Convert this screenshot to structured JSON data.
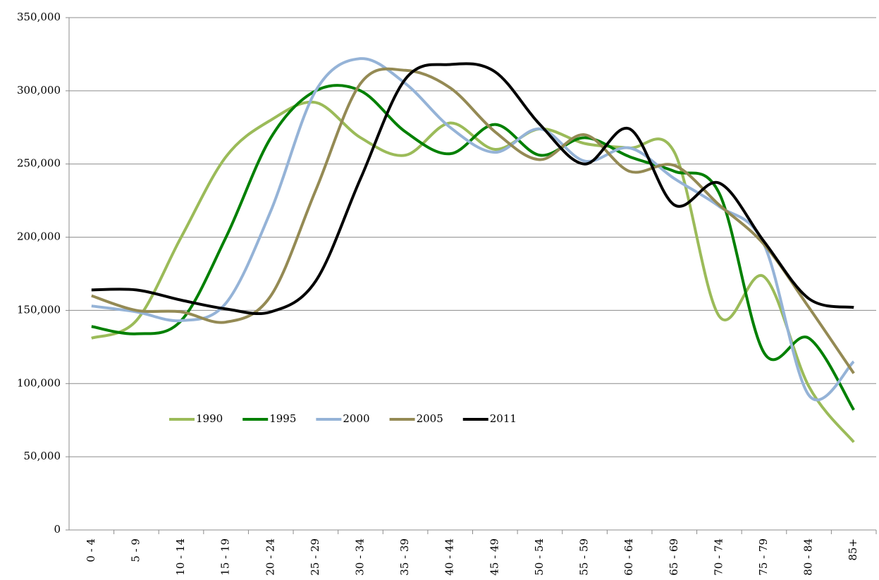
{
  "chart_data": {
    "type": "line",
    "smooth": true,
    "categories": [
      "0 - 4",
      "5 - 9",
      "10 - 14",
      "15 - 19",
      "20 - 24",
      "25 - 29",
      "30 - 34",
      "35 - 39",
      "40 - 44",
      "45 - 49",
      "50 - 54",
      "55 - 59",
      "60 - 64",
      "65 - 69",
      "70 - 74",
      "75 - 79",
      "80 - 84",
      "85+"
    ],
    "series": [
      {
        "name": "1990",
        "color": "#9bbb59",
        "values": [
          131000,
          143000,
          200000,
          255000,
          280000,
          292000,
          268000,
          256000,
          278000,
          260000,
          274000,
          264000,
          261000,
          258000,
          146000,
          173000,
          98000,
          60000
        ]
      },
      {
        "name": "1995",
        "color": "#008000",
        "values": [
          139000,
          134000,
          143000,
          200000,
          268000,
          300000,
          300000,
          272000,
          257000,
          277000,
          256000,
          268000,
          255000,
          245000,
          230000,
          121000,
          131000,
          82000
        ]
      },
      {
        "name": "2000",
        "color": "#95b3d7",
        "values": [
          153000,
          149000,
          143000,
          155000,
          218000,
          300000,
          322000,
          305000,
          275000,
          258000,
          274000,
          252000,
          261000,
          240000,
          221000,
          195000,
          92000,
          115000
        ]
      },
      {
        "name": "2005",
        "color": "#948a54",
        "values": [
          160000,
          150000,
          149000,
          142000,
          160000,
          232000,
          305000,
          314000,
          302000,
          272000,
          253000,
          270000,
          245000,
          249000,
          222000,
          195000,
          152000,
          107000
        ]
      },
      {
        "name": "2011",
        "color": "#000000",
        "values": [
          164000,
          164000,
          157000,
          151000,
          149000,
          170000,
          240000,
          308000,
          318000,
          313000,
          277000,
          250000,
          274000,
          222000,
          237000,
          197000,
          158000,
          152000
        ]
      }
    ],
    "ylim": [
      0,
      350000
    ],
    "yticks": [
      0,
      {
        "value": 50000,
        "label": "50,000"
      },
      {
        "value": 100000,
        "label": "100,000"
      },
      {
        "value": 150000,
        "label": "150,000"
      },
      {
        "value": 200000,
        "label": "200,000"
      },
      {
        "value": 250000,
        "label": "250,000"
      },
      {
        "value": 300000,
        "label": "300,000"
      },
      {
        "value": 350000,
        "label": "350,000"
      }
    ],
    "grid": true,
    "legend": "lower-left"
  }
}
